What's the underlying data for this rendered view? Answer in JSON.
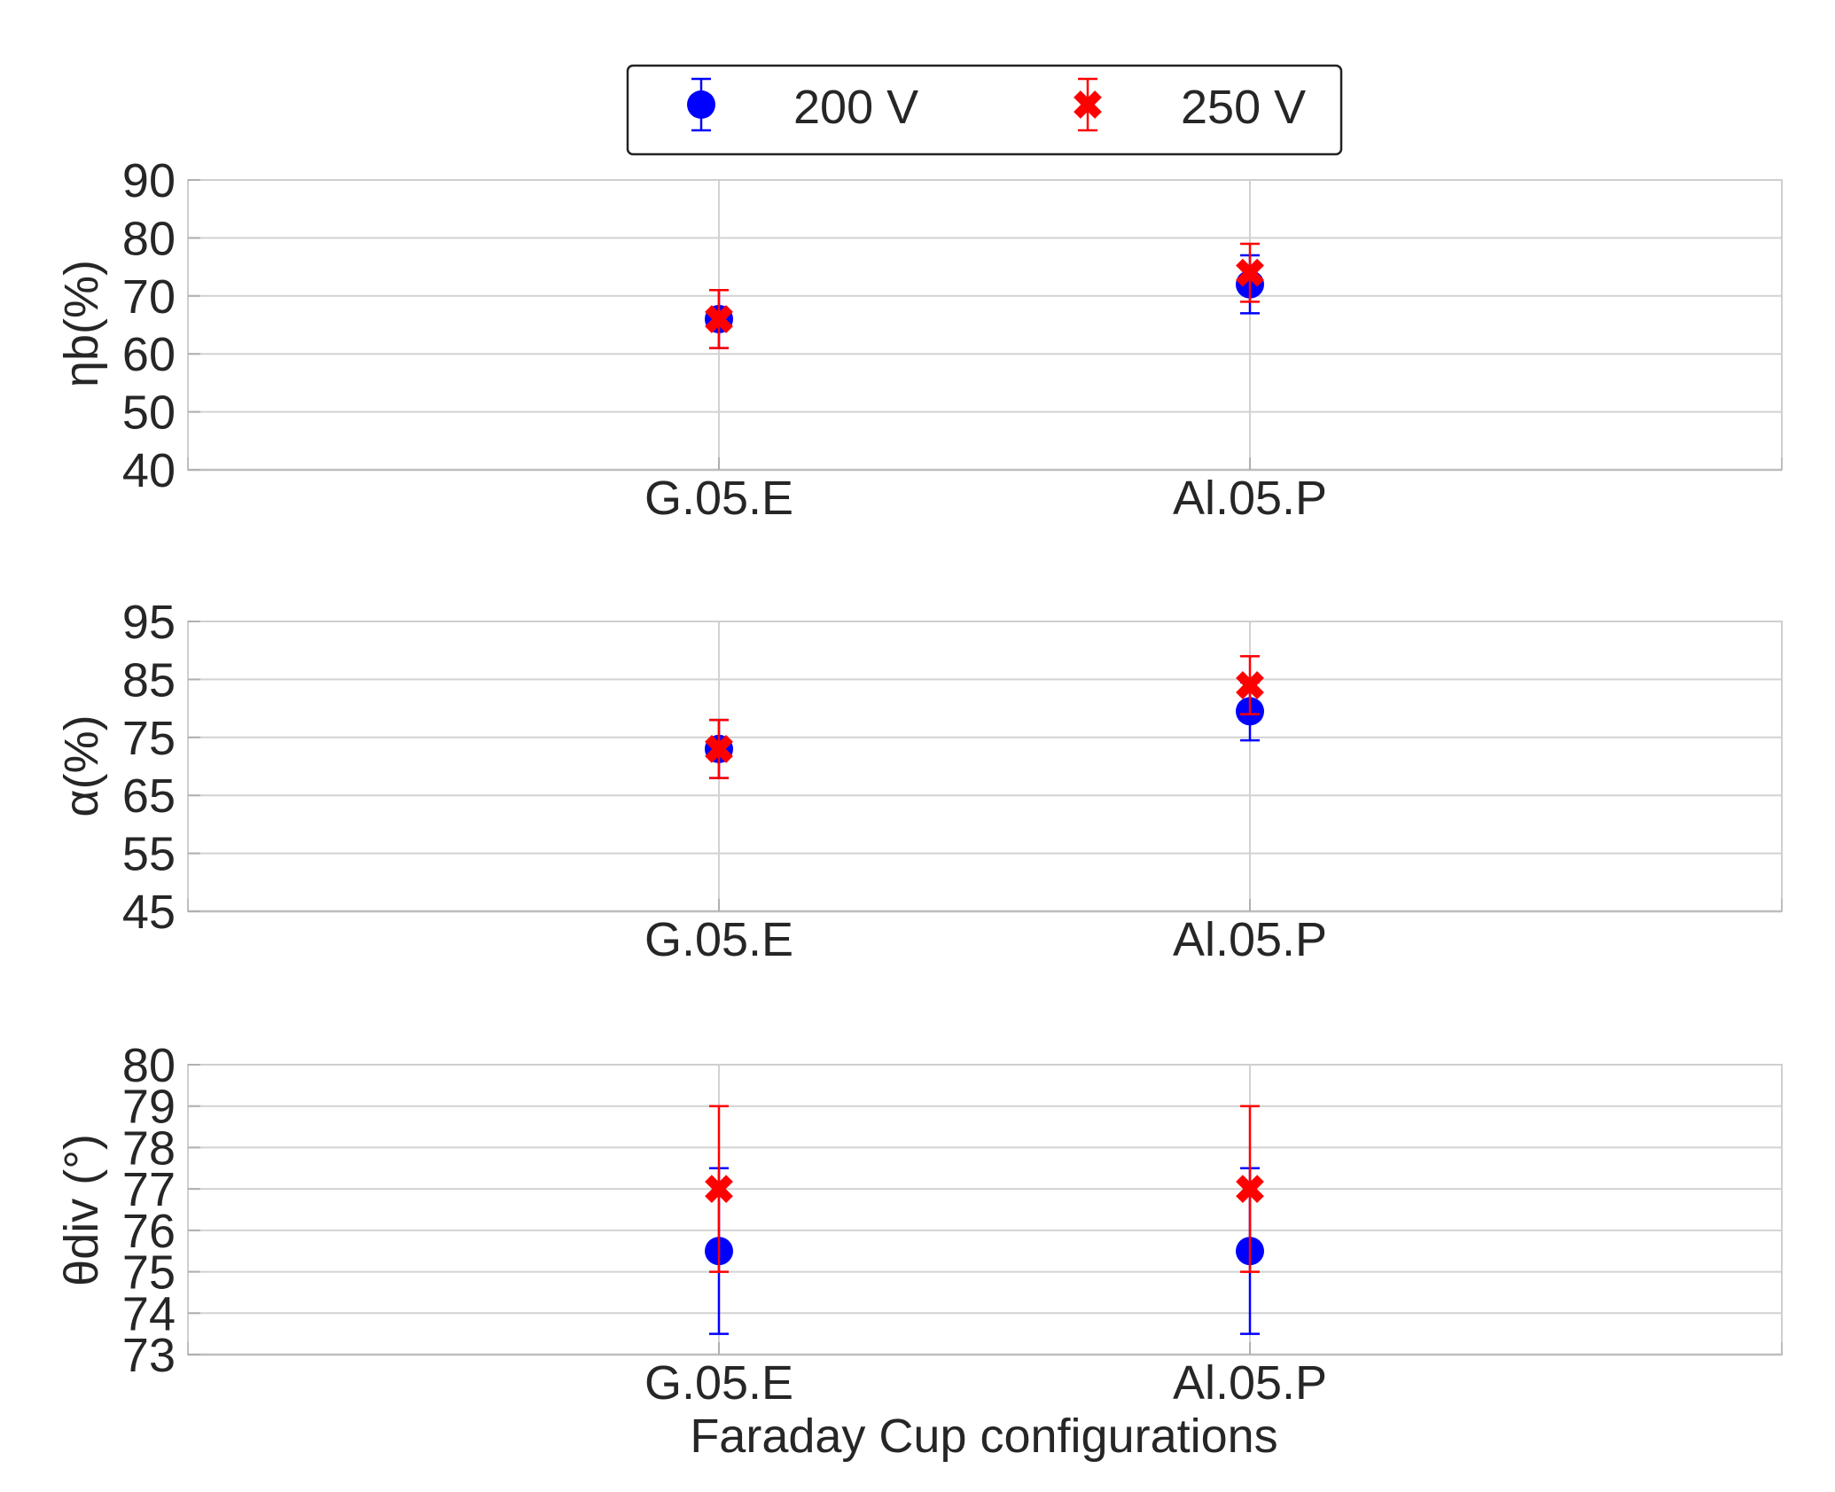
{
  "chart_data": [
    {
      "type": "scatter",
      "error_bars": true,
      "categories": [
        "G.05.E",
        "Al.05.P"
      ],
      "ylabel": "ηb(%)",
      "ylim": [
        40,
        90
      ],
      "yticks": [
        40,
        50,
        60,
        70,
        80,
        90
      ],
      "grid": true,
      "series": [
        {
          "name": "200 V",
          "color": "#0000ff",
          "marker": "circle",
          "values": [
            66,
            72
          ],
          "errors": [
            5,
            5
          ]
        },
        {
          "name": "250 V",
          "color": "#ff0000",
          "marker": "x",
          "values": [
            66,
            74
          ],
          "errors": [
            5,
            5
          ]
        }
      ]
    },
    {
      "type": "scatter",
      "error_bars": true,
      "categories": [
        "G.05.E",
        "Al.05.P"
      ],
      "ylabel": "α(%)",
      "ylim": [
        45,
        95
      ],
      "yticks": [
        45,
        55,
        65,
        75,
        85,
        95
      ],
      "grid": true,
      "series": [
        {
          "name": "200 V",
          "color": "#0000ff",
          "marker": "circle",
          "values": [
            73,
            79.5
          ],
          "errors": [
            5,
            5
          ]
        },
        {
          "name": "250 V",
          "color": "#ff0000",
          "marker": "x",
          "values": [
            73,
            84
          ],
          "errors": [
            5,
            5
          ]
        }
      ]
    },
    {
      "type": "scatter",
      "error_bars": true,
      "categories": [
        "G.05.E",
        "Al.05.P"
      ],
      "ylabel": "θdiv (°)",
      "xlabel": "Faraday Cup configurations",
      "ylim": [
        73,
        80
      ],
      "yticks": [
        73,
        74,
        75,
        76,
        77,
        78,
        79,
        80
      ],
      "grid": true,
      "series": [
        {
          "name": "200 V",
          "color": "#0000ff",
          "marker": "circle",
          "values": [
            75.5,
            75.5
          ],
          "errors": [
            2,
            2
          ]
        },
        {
          "name": "250 V",
          "color": "#ff0000",
          "marker": "x",
          "values": [
            77,
            77
          ],
          "errors": [
            2,
            2
          ]
        }
      ]
    }
  ],
  "legend": {
    "placement": "top-center",
    "entries": [
      {
        "label": "200 V",
        "color": "#0000ff",
        "marker": "circle"
      },
      {
        "label": "250 V",
        "color": "#ff0000",
        "marker": "x"
      }
    ]
  }
}
